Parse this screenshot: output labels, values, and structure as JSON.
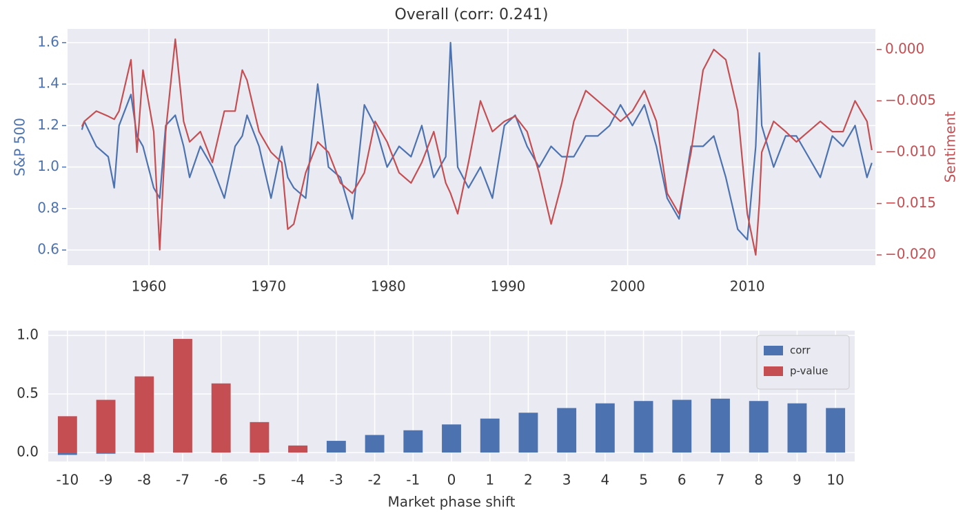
{
  "chart_data": [
    {
      "type": "line",
      "title": "Overall (corr: 0.241)",
      "x": [
        1954.4,
        1954.6,
        1955.6,
        1956.6,
        1957.1,
        1957.5,
        1958.5,
        1959.0,
        1959.5,
        1960.4,
        1960.9,
        1961.4,
        1962.2,
        1962.9,
        1963.4,
        1964.3,
        1965.3,
        1966.3,
        1967.2,
        1967.8,
        1968.2,
        1969.2,
        1970.2,
        1971.1,
        1971.6,
        1972.1,
        1973.1,
        1974.1,
        1975.0,
        1976.0,
        1977.0,
        1978.0,
        1978.9,
        1979.9,
        1980.9,
        1981.9,
        1982.8,
        1983.8,
        1984.8,
        1985.2,
        1985.8,
        1986.7,
        1987.7,
        1988.7,
        1989.7,
        1990.6,
        1991.6,
        1992.6,
        1993.6,
        1994.5,
        1995.5,
        1996.5,
        1997.5,
        1998.5,
        1999.4,
        2000.4,
        2001.4,
        2002.4,
        2003.3,
        2004.3,
        2005.3,
        2006.3,
        2007.2,
        2008.2,
        2009.2,
        2010.0,
        2010.7,
        2011.0,
        2011.2,
        2012.2,
        2013.2,
        2014.1,
        2015.1,
        2016.1,
        2017.1,
        2018.0,
        2019.0,
        2020.0,
        2020.4
      ],
      "series": [
        {
          "name": "S&P 500",
          "color": "#4c72b0",
          "axis": "y",
          "values": [
            1.18,
            1.22,
            1.1,
            1.05,
            0.9,
            1.2,
            1.35,
            1.15,
            1.1,
            0.9,
            0.85,
            1.2,
            1.25,
            1.1,
            0.95,
            1.1,
            1.0,
            0.85,
            1.1,
            1.15,
            1.25,
            1.1,
            0.85,
            1.1,
            0.95,
            0.9,
            0.85,
            1.4,
            1.0,
            0.95,
            0.75,
            1.3,
            1.2,
            1.0,
            1.1,
            1.05,
            1.2,
            0.95,
            1.05,
            1.6,
            1.0,
            0.9,
            1.0,
            0.85,
            1.2,
            1.25,
            1.1,
            1.0,
            1.1,
            1.05,
            1.05,
            1.15,
            1.15,
            1.2,
            1.3,
            1.2,
            1.3,
            1.1,
            0.85,
            0.75,
            1.1,
            1.1,
            1.15,
            0.95,
            0.7,
            0.65,
            1.1,
            1.55,
            1.2,
            1.0,
            1.15,
            1.15,
            1.05,
            0.95,
            1.15,
            1.1,
            1.2,
            0.95,
            1.02
          ]
        },
        {
          "name": "Sentiment",
          "color": "#c44e52",
          "axis": "y2",
          "values": [
            -0.0075,
            -0.007,
            -0.006,
            -0.0065,
            -0.0068,
            -0.006,
            -0.001,
            -0.01,
            -0.002,
            -0.008,
            -0.0195,
            -0.008,
            0.001,
            -0.007,
            -0.009,
            -0.008,
            -0.011,
            -0.006,
            -0.006,
            -0.002,
            -0.003,
            -0.008,
            -0.01,
            -0.011,
            -0.0175,
            -0.017,
            -0.012,
            -0.009,
            -0.01,
            -0.013,
            -0.014,
            -0.012,
            -0.007,
            -0.009,
            -0.012,
            -0.013,
            -0.011,
            -0.008,
            -0.013,
            -0.014,
            -0.016,
            -0.011,
            -0.005,
            -0.008,
            -0.007,
            -0.0065,
            -0.008,
            -0.012,
            -0.017,
            -0.013,
            -0.007,
            -0.004,
            -0.005,
            -0.006,
            -0.007,
            -0.006,
            -0.004,
            -0.007,
            -0.014,
            -0.016,
            -0.01,
            -0.002,
            0.0,
            -0.001,
            -0.006,
            -0.016,
            -0.02,
            -0.015,
            -0.01,
            -0.007,
            -0.008,
            -0.009,
            -0.008,
            -0.007,
            -0.008,
            -0.008,
            -0.005,
            -0.007,
            -0.0098
          ]
        }
      ],
      "xlim": [
        1953.2,
        2020.7
      ],
      "xticks": [
        1960,
        1970,
        1980,
        1990,
        2000,
        2010
      ],
      "ylim": [
        0.527,
        1.666
      ],
      "yticks": [
        0.6,
        0.8,
        {
          "value": 1,
          "label": "1.0"
        },
        1.2,
        1.4,
        1.6
      ],
      "y2lim": [
        -0.021,
        0.002
      ],
      "y2ticks": [
        {
          "value": -0.02,
          "label": "−0.020"
        },
        {
          "value": -0.015,
          "label": "−0.015"
        },
        {
          "value": -0.01,
          "label": "−0.010"
        },
        {
          "value": -0.005,
          "label": "−0.005"
        },
        {
          "value": 0,
          "label": "0.000"
        }
      ],
      "grid": true,
      "legend": false
    },
    {
      "type": "bar",
      "xlabel": "Market phase shift",
      "categories": [
        "-10",
        "-9",
        "-8",
        "-7",
        "-6",
        "-5",
        "-4",
        "-3",
        "-2",
        "-1",
        "0",
        "1",
        "2",
        "3",
        "4",
        "5",
        "6",
        "7",
        "8",
        "9",
        "10"
      ],
      "series": [
        {
          "name": "corr",
          "color": "#4c72b0",
          "values": [
            -0.02,
            -0.01,
            0.0,
            0.01,
            0.02,
            0.03,
            0.05,
            0.1,
            0.15,
            0.19,
            0.24,
            0.29,
            0.34,
            0.38,
            0.42,
            0.44,
            0.45,
            0.46,
            0.44,
            0.42,
            0.38
          ]
        },
        {
          "name": "p-value",
          "color": "#c44e52",
          "values": [
            0.31,
            0.45,
            0.65,
            0.97,
            0.59,
            0.26,
            0.06,
            0,
            0,
            0,
            0,
            0,
            0,
            0,
            0,
            0,
            0,
            0,
            0,
            0,
            0
          ]
        }
      ],
      "barmode": "overlay",
      "ylim": [
        -0.076,
        1.041
      ],
      "yticks": [
        {
          "value": 0,
          "label": "0.0"
        },
        0.5,
        {
          "value": 1,
          "label": "1.0"
        }
      ],
      "grid": true,
      "legend": "upper right"
    }
  ]
}
